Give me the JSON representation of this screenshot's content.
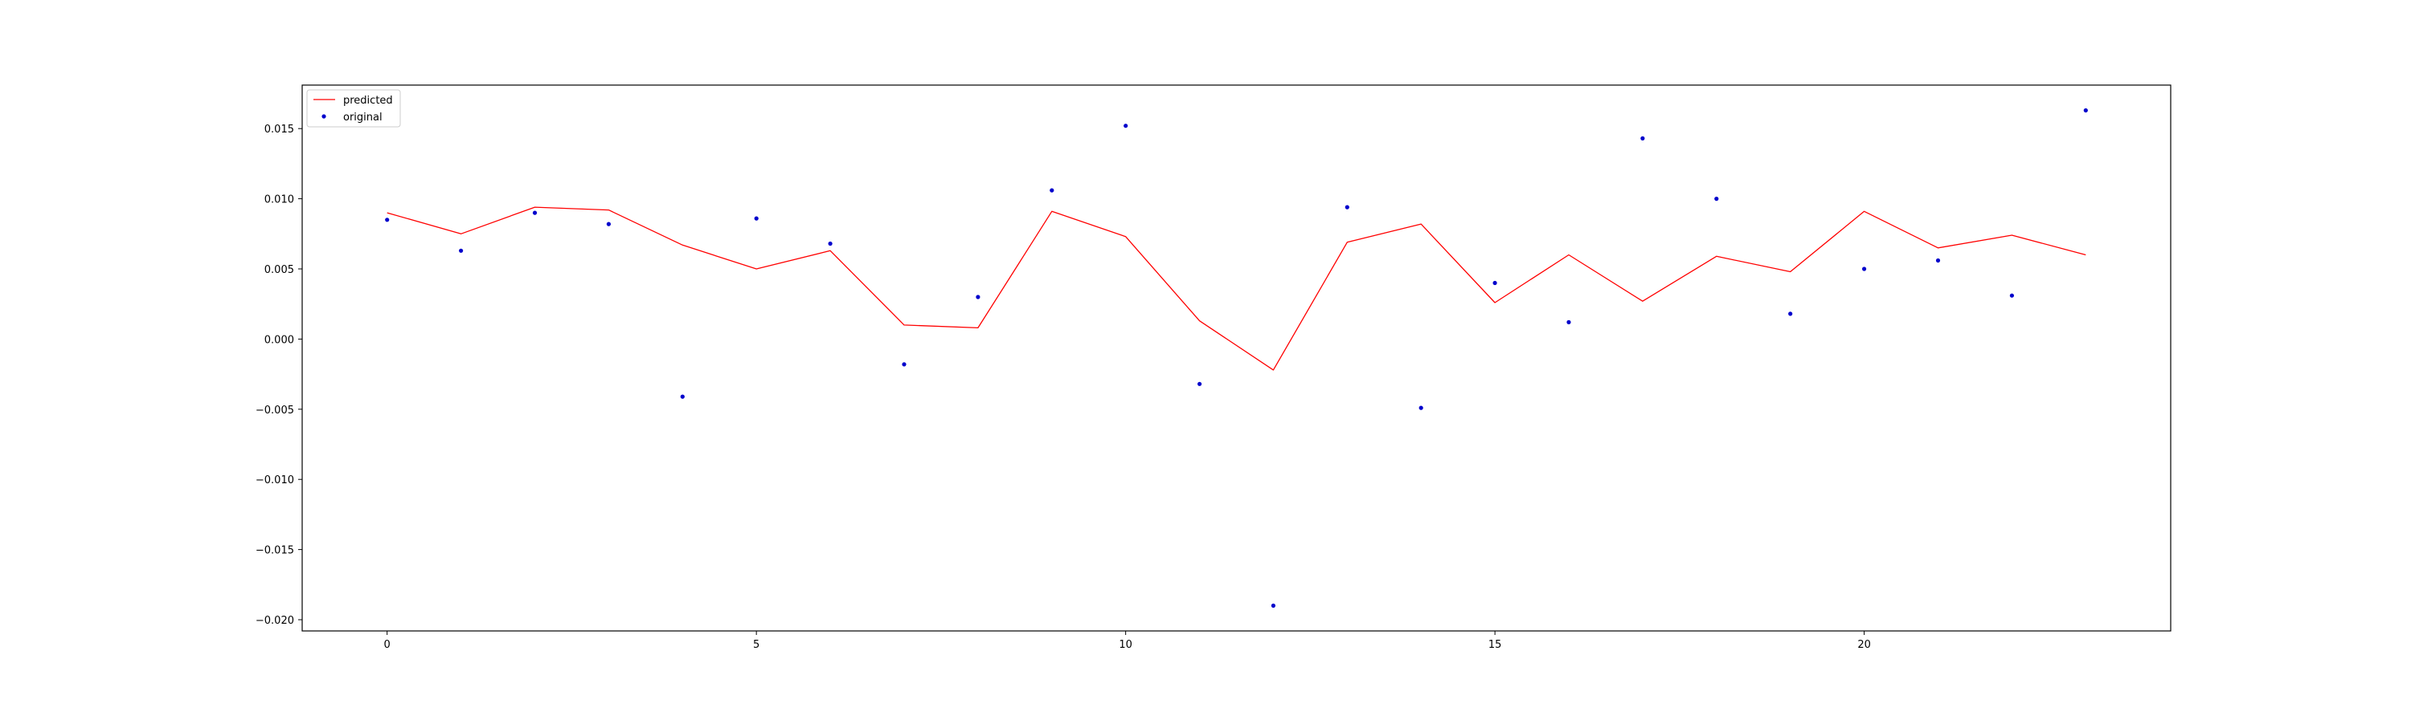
{
  "chart_data": {
    "type": "line",
    "title": "",
    "xlabel": "",
    "ylabel": "",
    "xlim": [
      -1.15,
      24.15
    ],
    "ylim": [
      -0.0208,
      0.0181
    ],
    "grid": false,
    "legend_position": "top-left",
    "x_ticks": [
      0,
      5,
      10,
      15,
      20
    ],
    "y_ticks": [
      {
        "value": 0.015,
        "label": "0.015"
      },
      {
        "value": 0.01,
        "label": "0.010"
      },
      {
        "value": 0.005,
        "label": "0.005"
      },
      {
        "value": 0.0,
        "label": "0.000"
      },
      {
        "value": -0.005,
        "label": "−0.005"
      },
      {
        "value": -0.01,
        "label": "−0.010"
      },
      {
        "value": -0.015,
        "label": "−0.015"
      },
      {
        "value": -0.02,
        "label": "−0.020"
      }
    ],
    "series": [
      {
        "name": "predicted",
        "kind": "line",
        "color": "#ff0000",
        "x": [
          0,
          1,
          2,
          3,
          4,
          5,
          6,
          7,
          8,
          9,
          10,
          11,
          12,
          13,
          14,
          15,
          16,
          17,
          18,
          19,
          20,
          21,
          22,
          23
        ],
        "y": [
          0.009,
          0.0075,
          0.0094,
          0.0092,
          0.0067,
          0.005,
          0.0063,
          0.001,
          0.0008,
          0.0091,
          0.0073,
          0.0013,
          -0.0022,
          0.0069,
          0.0082,
          0.0026,
          0.006,
          0.0027,
          0.0059,
          0.0048,
          0.0091,
          0.0065,
          0.0074,
          0.006
        ]
      },
      {
        "name": "original",
        "kind": "scatter",
        "color": "#0000cc",
        "x": [
          0,
          1,
          2,
          3,
          4,
          5,
          6,
          7,
          8,
          9,
          10,
          11,
          12,
          13,
          14,
          15,
          16,
          17,
          18,
          19,
          20,
          21,
          22,
          23
        ],
        "y": [
          0.0085,
          0.0063,
          0.009,
          0.0082,
          -0.0041,
          0.0086,
          0.0068,
          -0.0018,
          0.003,
          0.0106,
          0.0152,
          -0.0032,
          -0.019,
          0.0094,
          -0.0049,
          0.004,
          0.0012,
          0.0143,
          0.01,
          0.0018,
          0.005,
          0.0056,
          0.0031,
          0.0163
        ]
      }
    ]
  }
}
